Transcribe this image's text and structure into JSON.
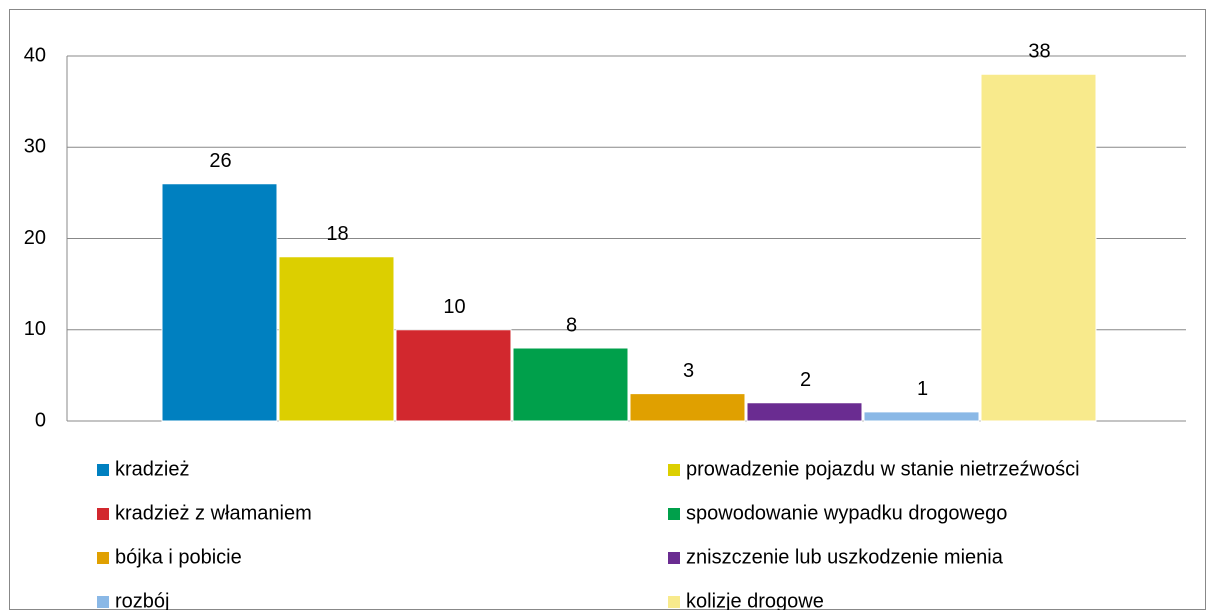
{
  "chart_data": {
    "type": "bar",
    "categories": [
      null
    ],
    "series": [
      {
        "name": "kradzież",
        "color": "#0080c0",
        "values": [
          26
        ]
      },
      {
        "name": "prowadzenie pojazdu w stanie nietrzeźwości",
        "color": "#dccf00",
        "values": [
          18
        ]
      },
      {
        "name": "kradzież z włamaniem",
        "color": "#d2282e",
        "values": [
          10
        ]
      },
      {
        "name": "spowodowanie wypadku drogowego",
        "color": "#00a04b",
        "values": [
          8
        ]
      },
      {
        "name": "bójka i pobicie",
        "color": "#e0a000",
        "values": [
          3
        ]
      },
      {
        "name": "zniszczenie lub uszkodzenie mienia",
        "color": "#6a2c91",
        "values": [
          2
        ]
      },
      {
        "name": "rozbój",
        "color": "#8ab8e6",
        "values": [
          1
        ]
      },
      {
        "name": "kolizje drogowe",
        "color": "#f8ea8c",
        "values": [
          38
        ]
      }
    ],
    "ylim": [
      0,
      40
    ],
    "yticks": [
      0,
      10,
      20,
      30,
      40
    ],
    "grid": true,
    "legend": "bottom"
  }
}
